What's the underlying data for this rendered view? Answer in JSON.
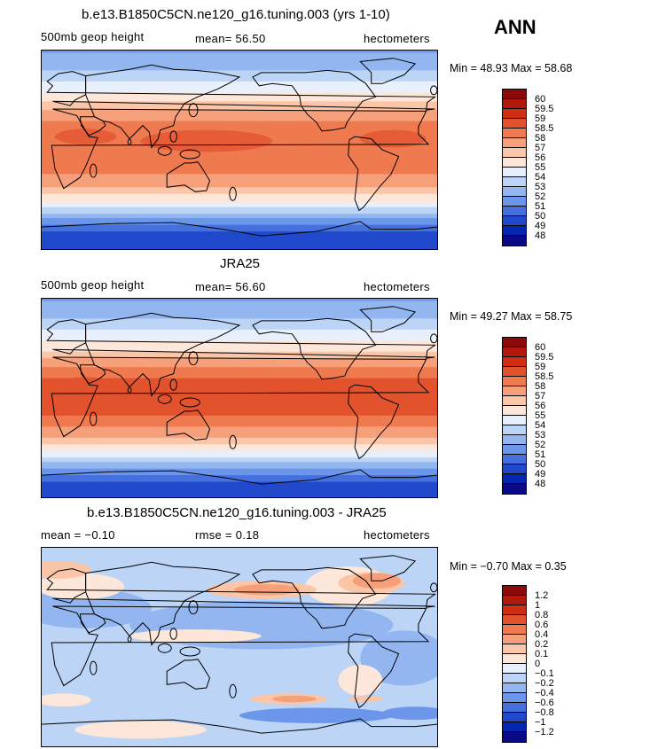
{
  "season": "ANN",
  "panels": [
    {
      "id": "model",
      "title": "b.e13.B1850C5CN.ne120_g16.tuning.003 (yrs 1-10)",
      "left_label": "500mb geop height",
      "center_label": "mean=  56.50",
      "units": "hectometers",
      "minmax": "Min =  48.93  Max =  58.68",
      "colorbar": {
        "levels": [
          "60",
          "59.5",
          "59",
          "58.5",
          "58",
          "57",
          "56",
          "55",
          "54",
          "53",
          "52",
          "51",
          "50",
          "49",
          "48"
        ],
        "colors": [
          "#8c0a0a",
          "#b2180c",
          "#d12d14",
          "#e2532d",
          "#ef7a4f",
          "#f6a07b",
          "#fbc6a8",
          "#fde7da",
          "#e7f0fc",
          "#bcd4f6",
          "#93b6f0",
          "#6b96e9",
          "#4471de",
          "#2049cc",
          "#0426b0",
          "#0a0a86"
        ]
      },
      "chart_data": {
        "type": "heatmap",
        "field": "500mb geopotential height",
        "units": "hectometers",
        "mean": 56.5,
        "min": 48.93,
        "max": 58.68,
        "zonal_profile": [
          {
            "lat": 90,
            "value": 51.8
          },
          {
            "lat": 75,
            "value": 52.8
          },
          {
            "lat": 60,
            "value": 54.2
          },
          {
            "lat": 45,
            "value": 55.8
          },
          {
            "lat": 30,
            "value": 57.8
          },
          {
            "lat": 15,
            "value": 58.4
          },
          {
            "lat": 0,
            "value": 58.5
          },
          {
            "lat": -15,
            "value": 58.4
          },
          {
            "lat": -30,
            "value": 57.6
          },
          {
            "lat": -45,
            "value": 55.4
          },
          {
            "lat": -60,
            "value": 52.4
          },
          {
            "lat": -75,
            "value": 49.8
          },
          {
            "lat": -90,
            "value": 49.0
          }
        ]
      }
    },
    {
      "id": "obs",
      "title": "JRA25",
      "left_label": "500mb geop height",
      "center_label": "mean=  56.60",
      "units": "hectometers",
      "minmax": "Min =  49.27  Max =  58.75",
      "colorbar": {
        "levels": [
          "60",
          "59.5",
          "59",
          "58.5",
          "58",
          "57",
          "56",
          "55",
          "54",
          "53",
          "52",
          "51",
          "50",
          "49",
          "48"
        ],
        "colors": [
          "#8c0a0a",
          "#b2180c",
          "#d12d14",
          "#e2532d",
          "#ef7a4f",
          "#f6a07b",
          "#fbc6a8",
          "#fde7da",
          "#e7f0fc",
          "#bcd4f6",
          "#93b6f0",
          "#6b96e9",
          "#4471de",
          "#2049cc",
          "#0426b0",
          "#0a0a86"
        ]
      },
      "chart_data": {
        "type": "heatmap",
        "field": "500mb geopotential height",
        "units": "hectometers",
        "mean": 56.6,
        "min": 49.27,
        "max": 58.75,
        "zonal_profile": [
          {
            "lat": 90,
            "value": 51.9
          },
          {
            "lat": 75,
            "value": 52.8
          },
          {
            "lat": 60,
            "value": 54.1
          },
          {
            "lat": 45,
            "value": 55.7
          },
          {
            "lat": 30,
            "value": 57.9
          },
          {
            "lat": 15,
            "value": 58.6
          },
          {
            "lat": 0,
            "value": 58.7
          },
          {
            "lat": -15,
            "value": 58.6
          },
          {
            "lat": -30,
            "value": 57.8
          },
          {
            "lat": -45,
            "value": 55.6
          },
          {
            "lat": -60,
            "value": 52.6
          },
          {
            "lat": -75,
            "value": 50.0
          },
          {
            "lat": -90,
            "value": 49.3
          }
        ]
      }
    },
    {
      "id": "diff",
      "title": "b.e13.B1850C5CN.ne120_g16.tuning.003 - JRA25",
      "left_label": "mean =  −0.10",
      "center_label": "rmse =    0.18",
      "units": "hectometers",
      "minmax": "Min =  −0.70  Max =    0.35",
      "colorbar": {
        "levels": [
          "1.2",
          "1",
          "0.8",
          "0.6",
          "0.4",
          "0.2",
          "0.1",
          "0",
          "−0.1",
          "−0.2",
          "−0.4",
          "−0.6",
          "−0.8",
          "−1",
          "−1.2"
        ],
        "colors": [
          "#8c0a0a",
          "#b2180c",
          "#d12d14",
          "#e2532d",
          "#ef7a4f",
          "#f6a07b",
          "#fbc6a8",
          "#fde7da",
          "#e7f0fc",
          "#bcd4f6",
          "#93b6f0",
          "#6b96e9",
          "#4471de",
          "#2049cc",
          "#0426b0",
          "#0a0a86"
        ]
      },
      "chart_data": {
        "type": "heatmap",
        "field": "500mb geopotential height difference",
        "units": "hectometers",
        "mean": -0.1,
        "rmse": 0.18,
        "min": -0.7,
        "max": 0.35
      }
    }
  ]
}
